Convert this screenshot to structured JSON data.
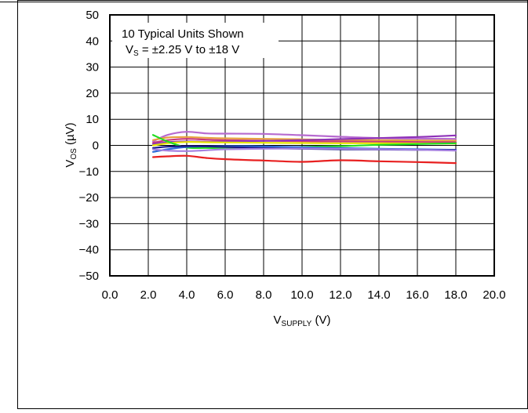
{
  "chart_data": {
    "type": "line",
    "xlabel": {
      "main": "V",
      "sub": "SUPPLY",
      "unit": " (V)"
    },
    "ylabel": {
      "main": "V",
      "sub": "OS",
      "unit": " (µV)"
    },
    "xlim": [
      0,
      20
    ],
    "ylim": [
      -50,
      50
    ],
    "xticks": [
      "0.0",
      "2.0",
      "4.0",
      "6.0",
      "8.0",
      "10.0",
      "12.0",
      "14.0",
      "16.0",
      "18.0",
      "20.0"
    ],
    "yticks": [
      "50",
      "40",
      "30",
      "20",
      "10",
      "0",
      "−10",
      "−20",
      "−30",
      "−40",
      "−50"
    ],
    "grid": true,
    "annotation": {
      "line1": "10 Typical Units Shown",
      "line2_main": "V",
      "line2_sub": "S",
      "line2_rest": " = ±2.25 V to ±18 V"
    },
    "series": [
      {
        "color": "#b76bd0",
        "x": [
          2.25,
          3,
          4,
          5,
          6,
          8,
          10,
          12,
          14,
          16,
          18
        ],
        "y": [
          1.5,
          4.0,
          5.2,
          4.6,
          4.5,
          4.4,
          3.9,
          3.3,
          2.8,
          2.6,
          2.5
        ]
      },
      {
        "color": "#e8a040",
        "x": [
          2.25,
          3,
          4,
          5,
          6,
          8,
          10,
          12,
          14,
          16,
          18
        ],
        "y": [
          2.0,
          3.0,
          3.2,
          2.9,
          2.7,
          2.5,
          2.3,
          2.1,
          2.0,
          1.9,
          1.8
        ]
      },
      {
        "color": "#c8387c",
        "x": [
          2.25,
          3,
          4,
          5,
          6,
          8,
          10,
          12,
          14,
          16,
          18
        ],
        "y": [
          1.0,
          2.0,
          2.5,
          2.2,
          2.0,
          1.8,
          1.6,
          1.5,
          1.4,
          1.3,
          1.2
        ]
      },
      {
        "color": "#8e32b8",
        "x": [
          2.25,
          3,
          4,
          5,
          6,
          8,
          10,
          12,
          14,
          16,
          18
        ],
        "y": [
          0.5,
          1.2,
          1.5,
          1.4,
          1.5,
          1.7,
          2.0,
          2.4,
          2.8,
          3.2,
          3.8
        ]
      },
      {
        "color": "#e6e600",
        "x": [
          2.25,
          3,
          4,
          5,
          6,
          8,
          10,
          12,
          14,
          16,
          18
        ],
        "y": [
          0.0,
          0.8,
          1.3,
          1.2,
          1.1,
          1.0,
          0.9,
          0.8,
          0.8,
          0.7,
          0.7
        ]
      },
      {
        "color": "#22dd22",
        "x": [
          2.25,
          3,
          4,
          5,
          6,
          8,
          10,
          12,
          14,
          16,
          18
        ],
        "y": [
          4.0,
          1.5,
          -0.8,
          -1.0,
          -1.0,
          -1.0,
          -0.6,
          -0.3,
          0.2,
          0.5,
          0.8
        ]
      },
      {
        "color": "#2a6ad8",
        "x": [
          2.25,
          3,
          4,
          5,
          6,
          8,
          10,
          12,
          14,
          16,
          18
        ],
        "y": [
          -2.5,
          -1.5,
          -0.6,
          -0.4,
          -0.3,
          -0.4,
          -0.7,
          -1.0,
          -1.3,
          -1.5,
          -1.7
        ]
      },
      {
        "color": "#1a1a8a",
        "x": [
          2.25,
          3,
          4,
          5,
          6,
          8,
          10,
          12,
          14,
          16,
          18
        ],
        "y": [
          -1.0,
          -0.5,
          -0.3,
          -0.4,
          -0.6,
          -1.0,
          -1.3,
          -1.5,
          -1.6,
          -1.7,
          -1.8
        ]
      },
      {
        "color": "#a580e0",
        "x": [
          2.25,
          3,
          4,
          5,
          6,
          8,
          10,
          12,
          14,
          16,
          18
        ],
        "y": [
          -1.5,
          -2.0,
          -2.2,
          -1.9,
          -1.5,
          -1.3,
          -1.2,
          -1.3,
          -1.5,
          -1.7,
          -2.0
        ]
      },
      {
        "color": "#e82020",
        "x": [
          2.25,
          3,
          4,
          5,
          6,
          8,
          10,
          12,
          14,
          16,
          18
        ],
        "y": [
          -4.5,
          -4.2,
          -4.0,
          -4.8,
          -5.3,
          -5.8,
          -6.3,
          -5.7,
          -6.1,
          -6.4,
          -6.8
        ]
      }
    ]
  }
}
